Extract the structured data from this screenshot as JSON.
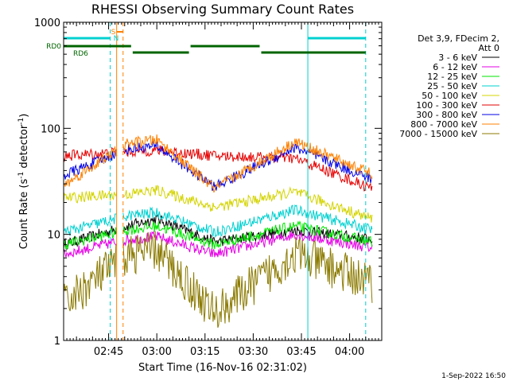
{
  "chart_data": {
    "type": "line",
    "title": "RHESSI Observing Summary Count Rates",
    "xlabel": "Start Time (16-Nov-16 02:31:02)",
    "ylabel_main": "Count Rate (s",
    "ylabel_sup1": "-1",
    "ylabel_mid": " detector",
    "ylabel_sup2": "-1",
    "ylabel_end": ")",
    "y_scale": "log",
    "ylim": [
      1,
      1000
    ],
    "xlim_minutes": [
      0,
      99
    ],
    "xticks": [
      {
        "label": "02:45",
        "minutes": 14
      },
      {
        "label": "03:00",
        "minutes": 29
      },
      {
        "label": "03:15",
        "minutes": 44
      },
      {
        "label": "03:30",
        "minutes": 59
      },
      {
        "label": "03:45",
        "minutes": 74
      },
      {
        "label": "04:00",
        "minutes": 89
      }
    ],
    "yticks": [
      {
        "label": "1",
        "value": 1
      },
      {
        "label": "10",
        "value": 10
      },
      {
        "label": "100",
        "value": 100
      },
      {
        "label": "1000",
        "value": 1000
      }
    ],
    "legend_header": [
      "Det 3,9, FDecim 2,",
      "Att 0"
    ],
    "legend_position": "right",
    "series": [
      {
        "name": "3 - 6 keV",
        "color": "#000000",
        "levels": [
          8,
          12,
          14,
          8.5,
          11,
          9
        ]
      },
      {
        "name": "6 - 12 keV",
        "color": "#e600e6",
        "levels": [
          6.5,
          9,
          9.5,
          6.5,
          10,
          7.5
        ]
      },
      {
        "name": "12 - 25 keV",
        "color": "#00e600",
        "levels": [
          8,
          11,
          12,
          8,
          12,
          8.5
        ]
      },
      {
        "name": "25 - 50 keV",
        "color": "#00d0d0",
        "levels": [
          10.5,
          15,
          16,
          10.5,
          17,
          11
        ]
      },
      {
        "name": "50 - 100 keV",
        "color": "#d4d400",
        "levels": [
          22,
          24,
          26,
          18,
          25,
          14
        ]
      },
      {
        "name": "100 - 300 keV",
        "color": "#e60000",
        "levels": [
          55,
          60,
          62,
          55,
          52,
          27
        ]
      },
      {
        "name": "300 - 800 keV",
        "color": "#0000e6",
        "levels": [
          36,
          64,
          68,
          28,
          66,
          33
        ]
      },
      {
        "name": "800 - 7000 keV",
        "color": "#ff8000",
        "levels": [
          29,
          72,
          78,
          27,
          75,
          37
        ]
      },
      {
        "name": "7000 - 15000 keV",
        "color": "#8b7a00",
        "levels": [
          2.2,
          6.5,
          7,
          1.8,
          6.5,
          3.5
        ]
      }
    ],
    "level_times_minutes": [
      0,
      20,
      29,
      47,
      72,
      96
    ],
    "flags": {
      "saa": {
        "label": "S",
        "color": "#ff8000"
      },
      "night": {
        "label": "N",
        "color": "#00d0d0"
      },
      "rd0": {
        "label": "RD0",
        "color": "#006400"
      },
      "rd6": {
        "label": "RD6",
        "color": "#006400"
      }
    },
    "night_intervals_minutes": [
      [
        0,
        14.5
      ],
      [
        76,
        94
      ]
    ],
    "saa_interval_minutes": [
      16.5,
      18.5
    ],
    "rd_intervals_minutes": [
      [
        0,
        21
      ],
      [
        21.5,
        39
      ],
      [
        39.5,
        61
      ],
      [
        61.5,
        94
      ]
    ],
    "vertical_markers": [
      {
        "color": "#00d0d0",
        "style": "dashed",
        "minutes": 14.5
      },
      {
        "color": "#ff8000",
        "style": "solid",
        "minutes": 16.5
      },
      {
        "color": "#ff8000",
        "style": "dashed",
        "minutes": 18.5
      },
      {
        "color": "#00d0d0",
        "style": "solid",
        "minutes": 76
      },
      {
        "color": "#00d0d0",
        "style": "dashed",
        "minutes": 94
      }
    ]
  },
  "footer_date": "1-Sep-2022 16:50"
}
